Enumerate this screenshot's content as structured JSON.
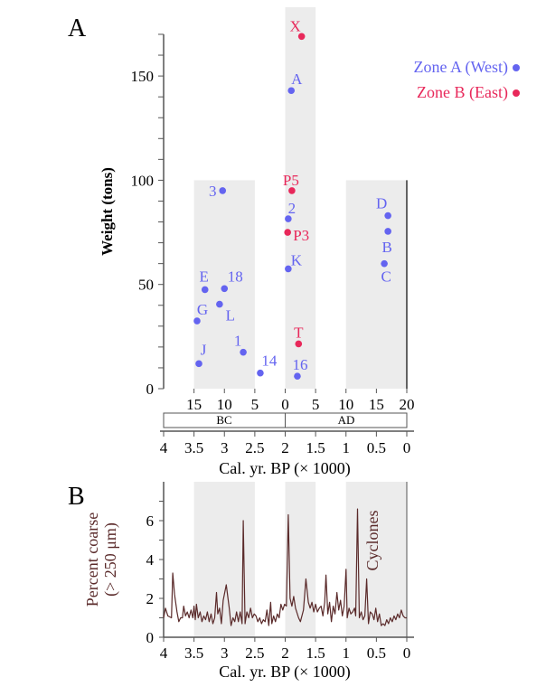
{
  "colors": {
    "zone_a": "#6464f0",
    "zone_b": "#e8285a",
    "line": "#5a2a2a",
    "band": "#ececec",
    "axis": "#555555"
  },
  "chart_data": [
    {
      "type": "scatter",
      "panel_label": "A",
      "ylabel": "Weight (tons)",
      "xlabel": "Cal. yr. BP (× 1000)",
      "xlim": [
        4,
        0
      ],
      "ylim": [
        0,
        170
      ],
      "yticks": [
        0,
        50,
        100,
        150
      ],
      "xticks": [
        "4",
        "3.5",
        "3",
        "2.5",
        "2",
        "1.5",
        "1",
        "0.5",
        "0"
      ],
      "top_axis_ticks": [
        "15",
        "10",
        "5",
        "0",
        "5",
        "10",
        "15",
        "20"
      ],
      "era_labels": [
        "BC",
        "AD"
      ],
      "legend": [
        {
          "label": "Zone A (West)",
          "series": "zone_a"
        },
        {
          "label": "Zone B (East)",
          "series": "zone_b"
        }
      ],
      "legend_position": "top-right",
      "shaded_bands_bp": [
        [
          3.5,
          2.5,
          100
        ],
        [
          2.0,
          1.5,
          170
        ],
        [
          1.0,
          0.0,
          100
        ]
      ],
      "points": [
        {
          "label": "X",
          "series": "zone_b",
          "bp": 1.73,
          "weight": 169
        },
        {
          "label": "A",
          "series": "zone_a",
          "bp": 1.9,
          "weight": 143
        },
        {
          "label": "3",
          "series": "zone_a",
          "bp": 3.03,
          "weight": 95
        },
        {
          "label": "P5",
          "series": "zone_b",
          "bp": 1.89,
          "weight": 95
        },
        {
          "label": "2",
          "series": "zone_a",
          "bp": 1.95,
          "weight": 81.5
        },
        {
          "label": "P3",
          "series": "zone_b",
          "bp": 1.96,
          "weight": 75
        },
        {
          "label": "D",
          "series": "zone_a",
          "bp": 0.31,
          "weight": 83
        },
        {
          "label": "B",
          "series": "zone_a",
          "bp": 0.31,
          "weight": 75.5
        },
        {
          "label": "C",
          "series": "zone_a",
          "bp": 0.37,
          "weight": 60
        },
        {
          "label": "K",
          "series": "zone_a",
          "bp": 1.95,
          "weight": 57.5
        },
        {
          "label": "E",
          "series": "zone_a",
          "bp": 3.32,
          "weight": 47.5
        },
        {
          "label": "18",
          "series": "zone_a",
          "bp": 3.0,
          "weight": 48
        },
        {
          "label": "L",
          "series": "zone_a",
          "bp": 3.08,
          "weight": 40.5
        },
        {
          "label": "G",
          "series": "zone_a",
          "bp": 3.45,
          "weight": 32.5
        },
        {
          "label": "1",
          "series": "zone_a",
          "bp": 2.69,
          "weight": 17.5
        },
        {
          "label": "J",
          "series": "zone_a",
          "bp": 3.42,
          "weight": 12
        },
        {
          "label": "14",
          "series": "zone_a",
          "bp": 2.41,
          "weight": 7.5
        },
        {
          "label": "T",
          "series": "zone_b",
          "bp": 1.78,
          "weight": 21.5
        },
        {
          "label": "16",
          "series": "zone_a",
          "bp": 1.8,
          "weight": 6
        }
      ]
    },
    {
      "type": "line",
      "panel_label": "B",
      "ylabel_lines": [
        "Percent coarse",
        "(> 250 μm)"
      ],
      "xlabel": "Cal. yr. BP (× 1000)",
      "annotation": "Cyclones",
      "xlim": [
        4,
        0
      ],
      "ylim": [
        0,
        8
      ],
      "yticks": [
        0,
        2,
        4,
        6
      ],
      "xticks": [
        "4",
        "3.5",
        "3",
        "2.5",
        "2",
        "1.5",
        "1",
        "0.5",
        "0"
      ],
      "shaded_bands_bp": [
        [
          3.5,
          2.5
        ],
        [
          2.0,
          1.5
        ],
        [
          1.0,
          0.0
        ]
      ],
      "x": [
        4.0,
        3.97,
        3.93,
        3.87,
        3.85,
        3.82,
        3.78,
        3.75,
        3.72,
        3.69,
        3.67,
        3.64,
        3.61,
        3.58,
        3.55,
        3.52,
        3.5,
        3.48,
        3.46,
        3.43,
        3.4,
        3.37,
        3.34,
        3.31,
        3.28,
        3.25,
        3.22,
        3.19,
        3.16,
        3.13,
        3.11,
        3.08,
        3.05,
        3.02,
        2.97,
        2.92,
        2.89,
        2.86,
        2.83,
        2.8,
        2.77,
        2.74,
        2.71,
        2.69,
        2.66,
        2.63,
        2.6,
        2.57,
        2.54,
        2.51,
        2.48,
        2.45,
        2.42,
        2.39,
        2.36,
        2.33,
        2.3,
        2.27,
        2.24,
        2.22,
        2.19,
        2.16,
        2.13,
        2.1,
        2.07,
        2.04,
        2.01,
        1.98,
        1.95,
        1.92,
        1.89,
        1.86,
        1.83,
        1.78,
        1.75,
        1.7,
        1.66,
        1.62,
        1.59,
        1.56,
        1.53,
        1.5,
        1.47,
        1.44,
        1.41,
        1.38,
        1.35,
        1.33,
        1.3,
        1.27,
        1.24,
        1.21,
        1.18,
        1.15,
        1.12,
        1.09,
        1.06,
        1.03,
        1.0,
        0.98,
        0.95,
        0.92,
        0.89,
        0.86,
        0.84,
        0.81,
        0.78,
        0.75,
        0.72,
        0.69,
        0.66,
        0.63,
        0.6,
        0.57,
        0.54,
        0.51,
        0.48,
        0.45,
        0.42,
        0.39,
        0.36,
        0.33,
        0.3,
        0.27,
        0.24,
        0.21,
        0.18,
        0.15,
        0.12,
        0.09,
        0.06,
        0.03,
        0.0
      ],
      "y": [
        1.0,
        1.5,
        1.1,
        1.0,
        3.3,
        2.2,
        1.3,
        0.8,
        1.0,
        1.0,
        1.6,
        1.1,
        1.3,
        1.0,
        1.4,
        1.0,
        1.6,
        0.9,
        1.7,
        1.0,
        1.3,
        0.8,
        1.1,
        0.9,
        1.3,
        0.8,
        1.2,
        0.7,
        1.0,
        2.3,
        1.2,
        1.5,
        0.7,
        1.9,
        2.7,
        1.5,
        0.6,
        1.0,
        0.8,
        1.3,
        0.8,
        1.3,
        0.7,
        6.0,
        0.7,
        1.3,
        1.0,
        1.5,
        1.0,
        1.2,
        1.1,
        0.8,
        1.0,
        0.7,
        0.9,
        0.8,
        1.4,
        0.6,
        1.8,
        0.7,
        1.1,
        0.8,
        1.2,
        1.0,
        1.7,
        1.4,
        1.7,
        1.6,
        6.3,
        2.0,
        1.6,
        2.1,
        1.5,
        1.0,
        0.8,
        1.4,
        3.0,
        1.8,
        1.5,
        1.8,
        1.3,
        1.7,
        1.3,
        1.5,
        1.6,
        1.1,
        1.8,
        3.2,
        1.2,
        1.8,
        0.8,
        1.6,
        1.2,
        2.3,
        1.4,
        1.9,
        1.1,
        1.6,
        3.5,
        1.0,
        1.5,
        1.2,
        1.3,
        1.5,
        1.1,
        6.6,
        1.0,
        1.3,
        0.9,
        1.1,
        3.0,
        0.7,
        1.3,
        1.2,
        0.9,
        1.5,
        0.8,
        1.2,
        0.6,
        0.7,
        0.6,
        0.9,
        0.7,
        1.0,
        0.8,
        1.1,
        0.9,
        1.2,
        1.0,
        1.4,
        1.1,
        1.0,
        1.0
      ]
    }
  ]
}
